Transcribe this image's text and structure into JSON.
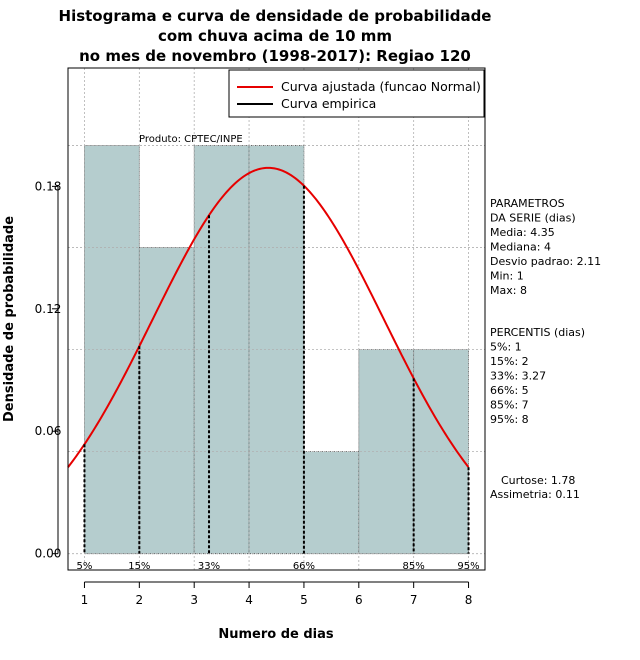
{
  "chart_data": {
    "type": "bar",
    "title_lines": [
      "Histograma e curva de densidade de probabilidade",
      "com chuva acima de 10 mm",
      "no mes de novembro (1998-2017): Regiao 120"
    ],
    "xlabel": "Numero de dias",
    "ylabel": "Densidade de probabilidade",
    "xlim": [
      0.7,
      8.3
    ],
    "ylim": [
      -0.008,
      0.238
    ],
    "x_ticks": [
      "1",
      "2",
      "3",
      "4",
      "5",
      "6",
      "7",
      "8"
    ],
    "y_ticks": [
      "0.00",
      "0.06",
      "0.12",
      "0.18"
    ],
    "bars": [
      {
        "x0": 1,
        "x1": 2,
        "value": 0.2
      },
      {
        "x0": 2,
        "x1": 3,
        "value": 0.15
      },
      {
        "x0": 3,
        "x1": 4,
        "value": 0.2
      },
      {
        "x0": 4,
        "x1": 5,
        "value": 0.2
      },
      {
        "x0": 5,
        "x1": 6,
        "value": 0.05
      },
      {
        "x0": 6,
        "x1": 7,
        "value": 0.1
      },
      {
        "x0": 7,
        "x1": 8,
        "value": 0.1
      }
    ],
    "bar_color": "#b5cdce",
    "fit": {
      "name": "Curva ajustada (funcao Normal)",
      "mean": 4.35,
      "sd": 2.11,
      "color": "#e60000"
    },
    "empirical_name": "Curva empirica",
    "legend_position": "top-right",
    "grid": true,
    "annotation": "Produto: CPTEC/INPE",
    "percentile_markers": [
      {
        "label": "5%",
        "x": 1
      },
      {
        "label": "15%",
        "x": 2
      },
      {
        "label": "33%",
        "x": 3.27
      },
      {
        "label": "66%",
        "x": 5
      },
      {
        "label": "85%",
        "x": 7
      },
      {
        "label": "95%",
        "x": 8
      }
    ],
    "side_panel": {
      "parametros": [
        "PARAMETROS",
        "DA SERIE (dias)",
        "  Media: 4.35",
        "  Mediana: 4",
        "  Desvio padrao: 2.11",
        "  Min: 1",
        "  Max: 8"
      ],
      "percentis": [
        "PERCENTIS (dias)",
        "  5%: 1",
        "  15%: 2",
        "  33%: 3.27",
        "  66%: 5",
        "  85%: 7",
        "  95%: 8"
      ],
      "curtose": "Curtose: 1.78",
      "assimetria": "Assimetria: 0.11"
    }
  }
}
